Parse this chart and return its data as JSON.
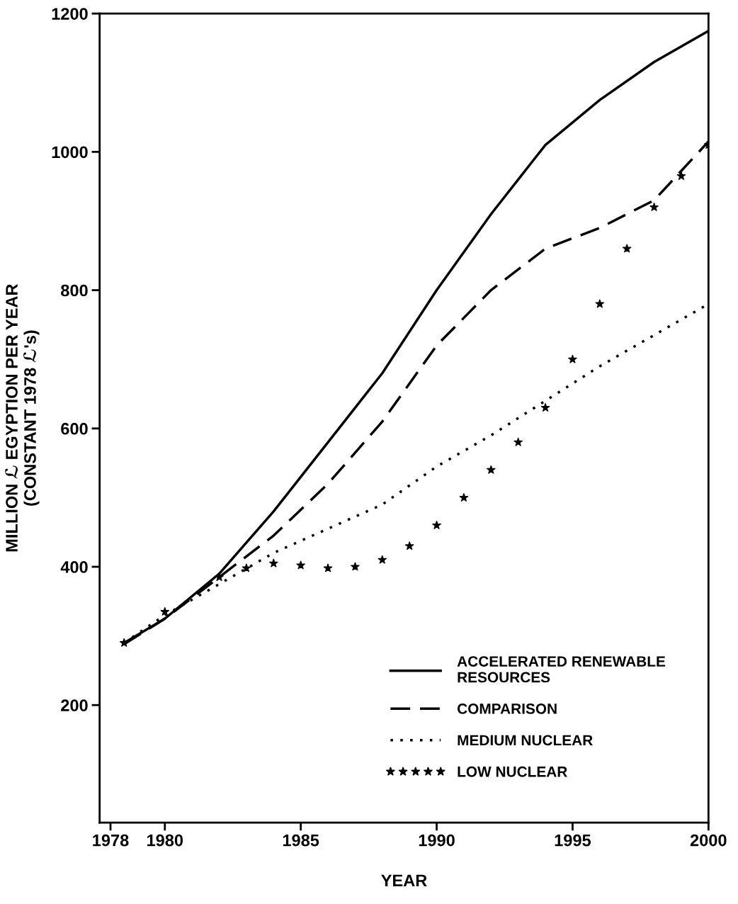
{
  "chart_data": {
    "type": "line",
    "xlabel": "YEAR",
    "ylabel": "MILLION ℒ EGYPTION PER YEAR\n(CONSTANT 1978 ℒ's)",
    "xlim": [
      1977.6,
      2000
    ],
    "xticks": [
      1978,
      1980,
      1985,
      1990,
      1995,
      2000
    ],
    "ylim": [
      30,
      1200
    ],
    "yticks": [
      200,
      400,
      600,
      800,
      1000,
      1200
    ],
    "grid": false,
    "legend": "bottom right",
    "series": [
      {
        "name": "ACCELERATED RENEWABLE\nRESOURCES",
        "color": "#000000",
        "line_style": "solid",
        "x": [
          1978.5,
          1980,
          1982,
          1984,
          1986,
          1988,
          1990,
          1992,
          1994,
          1996,
          1998,
          2000
        ],
        "values": [
          290,
          325,
          390,
          480,
          580,
          680,
          800,
          910,
          1010,
          1075,
          1130,
          1175
        ]
      },
      {
        "name": "COMPARISON",
        "color": "#000000",
        "line_style": "dashed",
        "x": [
          1978.5,
          1980,
          1982,
          1984,
          1986,
          1988,
          1990,
          1992,
          1994,
          1996,
          1998,
          2000
        ],
        "values": [
          288,
          325,
          385,
          445,
          520,
          610,
          720,
          800,
          860,
          890,
          930,
          1015
        ]
      },
      {
        "name": "MEDIUM NUCLEAR",
        "color": "#000000",
        "line_style": "dotted",
        "x": [
          1978.5,
          1980,
          1982,
          1984,
          1986,
          1988,
          1990,
          1992,
          1994,
          1996,
          1998,
          2000
        ],
        "values": [
          290,
          330,
          375,
          420,
          455,
          490,
          545,
          590,
          640,
          690,
          735,
          780
        ]
      },
      {
        "name": "LOW NUCLEAR",
        "color": "#000000",
        "type": "scatter",
        "marker": "star",
        "x": [
          1978.5,
          1980,
          1982,
          1983,
          1984,
          1985,
          1986,
          1987,
          1988,
          1989,
          1990,
          1991,
          1992,
          1993,
          1994,
          1995,
          1996,
          1997,
          1998,
          1999,
          2000
        ],
        "values": [
          290,
          335,
          385,
          398,
          405,
          402,
          398,
          400,
          410,
          430,
          460,
          500,
          540,
          580,
          630,
          700,
          780,
          860,
          920,
          965,
          1010
        ]
      }
    ]
  }
}
